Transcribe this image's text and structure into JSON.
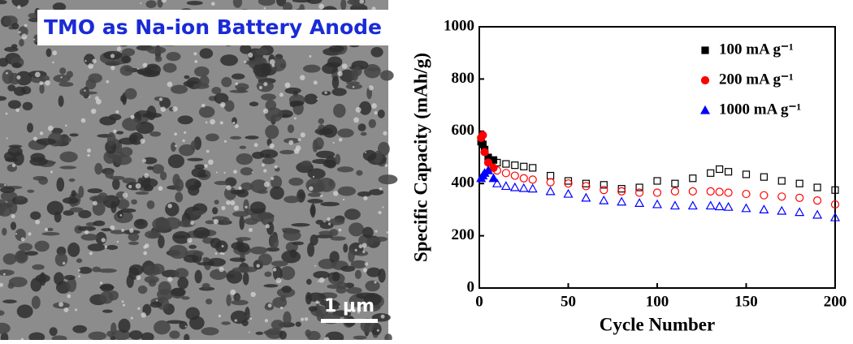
{
  "image": {
    "title": "TMO as Na-ion Battery Anode",
    "scale_bar": "1 μm"
  },
  "chart_data": {
    "type": "scatter",
    "x_label": "Cycle Number",
    "y_label": "Specific Capacity (mAh/g)",
    "x": [
      1,
      2,
      3,
      5,
      8,
      10,
      15,
      20,
      25,
      30,
      40,
      50,
      60,
      70,
      80,
      90,
      100,
      110,
      120,
      130,
      135,
      140,
      150,
      160,
      170,
      180,
      190,
      200
    ],
    "series": [
      {
        "name": "100 mA g⁻¹",
        "color": "#000000",
        "marker": "square",
        "values": [
          560,
          550,
          530,
          500,
          490,
          480,
          475,
          470,
          465,
          460,
          430,
          410,
          400,
          395,
          380,
          385,
          410,
          400,
          420,
          440,
          455,
          445,
          435,
          425,
          410,
          400,
          385,
          375
        ]
      },
      {
        "name": "200 mA g⁻¹",
        "color": "#ff0000",
        "marker": "circle",
        "values": [
          575,
          585,
          520,
          480,
          460,
          450,
          440,
          430,
          420,
          415,
          405,
          400,
          390,
          375,
          370,
          365,
          365,
          370,
          370,
          370,
          368,
          365,
          360,
          355,
          350,
          345,
          335,
          320
        ]
      },
      {
        "name": "1000 mA g⁻¹",
        "color": "#0000ff",
        "marker": "triangle",
        "values": [
          420,
          430,
          440,
          450,
          420,
          400,
          390,
          385,
          382,
          380,
          370,
          360,
          345,
          335,
          330,
          325,
          320,
          315,
          315,
          315,
          312,
          310,
          305,
          300,
          295,
          290,
          280,
          270
        ]
      }
    ],
    "xlim": [
      0,
      200
    ],
    "xticks": [
      0,
      50,
      100,
      150,
      200
    ],
    "ylim": [
      0,
      1000
    ],
    "yticks": [
      0,
      200,
      400,
      600,
      800,
      1000
    ],
    "legend": "upper right"
  }
}
